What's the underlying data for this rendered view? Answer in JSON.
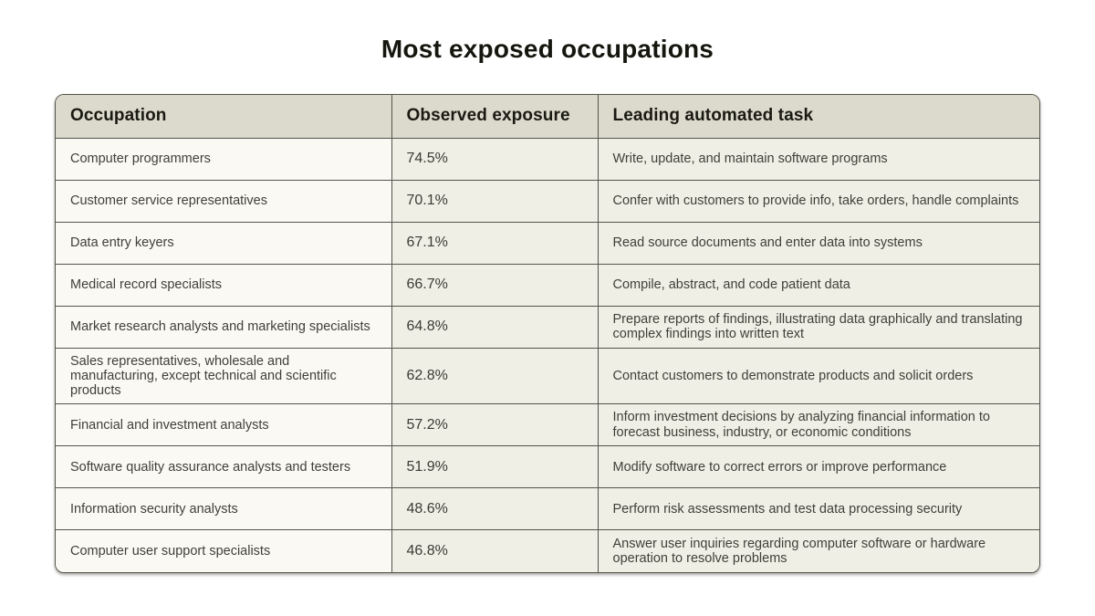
{
  "page": {
    "title": "Most exposed occupations"
  },
  "table": {
    "headers": {
      "occupation": "Occupation",
      "exposure": "Observed exposure",
      "task": "Leading automated task"
    },
    "rows": [
      {
        "occupation": "Computer programmers",
        "exposure": "74.5%",
        "task": "Write, update, and maintain software programs"
      },
      {
        "occupation": "Customer service representatives",
        "exposure": "70.1%",
        "task": "Confer with customers to provide info, take orders, handle complaints"
      },
      {
        "occupation": "Data entry keyers",
        "exposure": "67.1%",
        "task": "Read source documents and enter data into systems"
      },
      {
        "occupation": "Medical record specialists",
        "exposure": "66.7%",
        "task": "Compile, abstract, and code patient data"
      },
      {
        "occupation": "Market research analysts and marketing specialists",
        "exposure": "64.8%",
        "task": "Prepare reports of findings, illustrating data graphically and translating complex findings into written text"
      },
      {
        "occupation": "Sales representatives, wholesale and manufacturing, except technical and scientific products",
        "exposure": "62.8%",
        "task": "Contact customers to demonstrate products and solicit orders"
      },
      {
        "occupation": "Financial and investment analysts",
        "exposure": "57.2%",
        "task": "Inform investment decisions by analyzing financial information to forecast business, industry, or economic conditions"
      },
      {
        "occupation": "Software quality assurance analysts and testers",
        "exposure": "51.9%",
        "task": "Modify software to correct errors or improve performance"
      },
      {
        "occupation": "Information security analysts",
        "exposure": "48.6%",
        "task": "Perform risk assessments and test data processing security"
      },
      {
        "occupation": "Computer user support specialists",
        "exposure": "46.8%",
        "task": "Answer user inquiries regarding computer software or hardware operation to resolve problems"
      }
    ]
  },
  "colors": {
    "page_background": "#ffffff",
    "header_background": "#dcdacd",
    "occupation_cell_background": "#faf9f3",
    "data_cell_background": "#f0efe6",
    "border": "#55544c",
    "title_text": "#16160f",
    "cell_text": "#403f38"
  },
  "chart_data": {
    "type": "table",
    "title": "Most exposed occupations",
    "columns": [
      "Occupation",
      "Observed exposure",
      "Leading automated task"
    ],
    "exposure_values_pct": [
      74.5,
      70.1,
      67.1,
      66.7,
      64.8,
      62.8,
      57.2,
      51.9,
      48.6,
      46.8
    ],
    "rows": [
      [
        "Computer programmers",
        "74.5%",
        "Write, update, and maintain software programs"
      ],
      [
        "Customer service representatives",
        "70.1%",
        "Confer with customers to provide info, take orders, handle complaints"
      ],
      [
        "Data entry keyers",
        "67.1%",
        "Read source documents and enter data into systems"
      ],
      [
        "Medical record specialists",
        "66.7%",
        "Compile, abstract, and code patient data"
      ],
      [
        "Market research analysts and marketing specialists",
        "64.8%",
        "Prepare reports of findings, illustrating data graphically and translating complex findings into written text"
      ],
      [
        "Sales representatives, wholesale and manufacturing, except technical and scientific products",
        "62.8%",
        "Contact customers to demonstrate products and solicit orders"
      ],
      [
        "Financial and investment analysts",
        "57.2%",
        "Inform investment decisions by analyzing financial information to forecast business, industry, or economic conditions"
      ],
      [
        "Software quality assurance analysts and testers",
        "51.9%",
        "Modify software to correct errors or improve performance"
      ],
      [
        "Information security analysts",
        "48.6%",
        "Perform risk assessments and test data processing security"
      ],
      [
        "Computer user support specialists",
        "46.8%",
        "Answer user inquiries regarding computer software or hardware operation to resolve problems"
      ]
    ]
  }
}
